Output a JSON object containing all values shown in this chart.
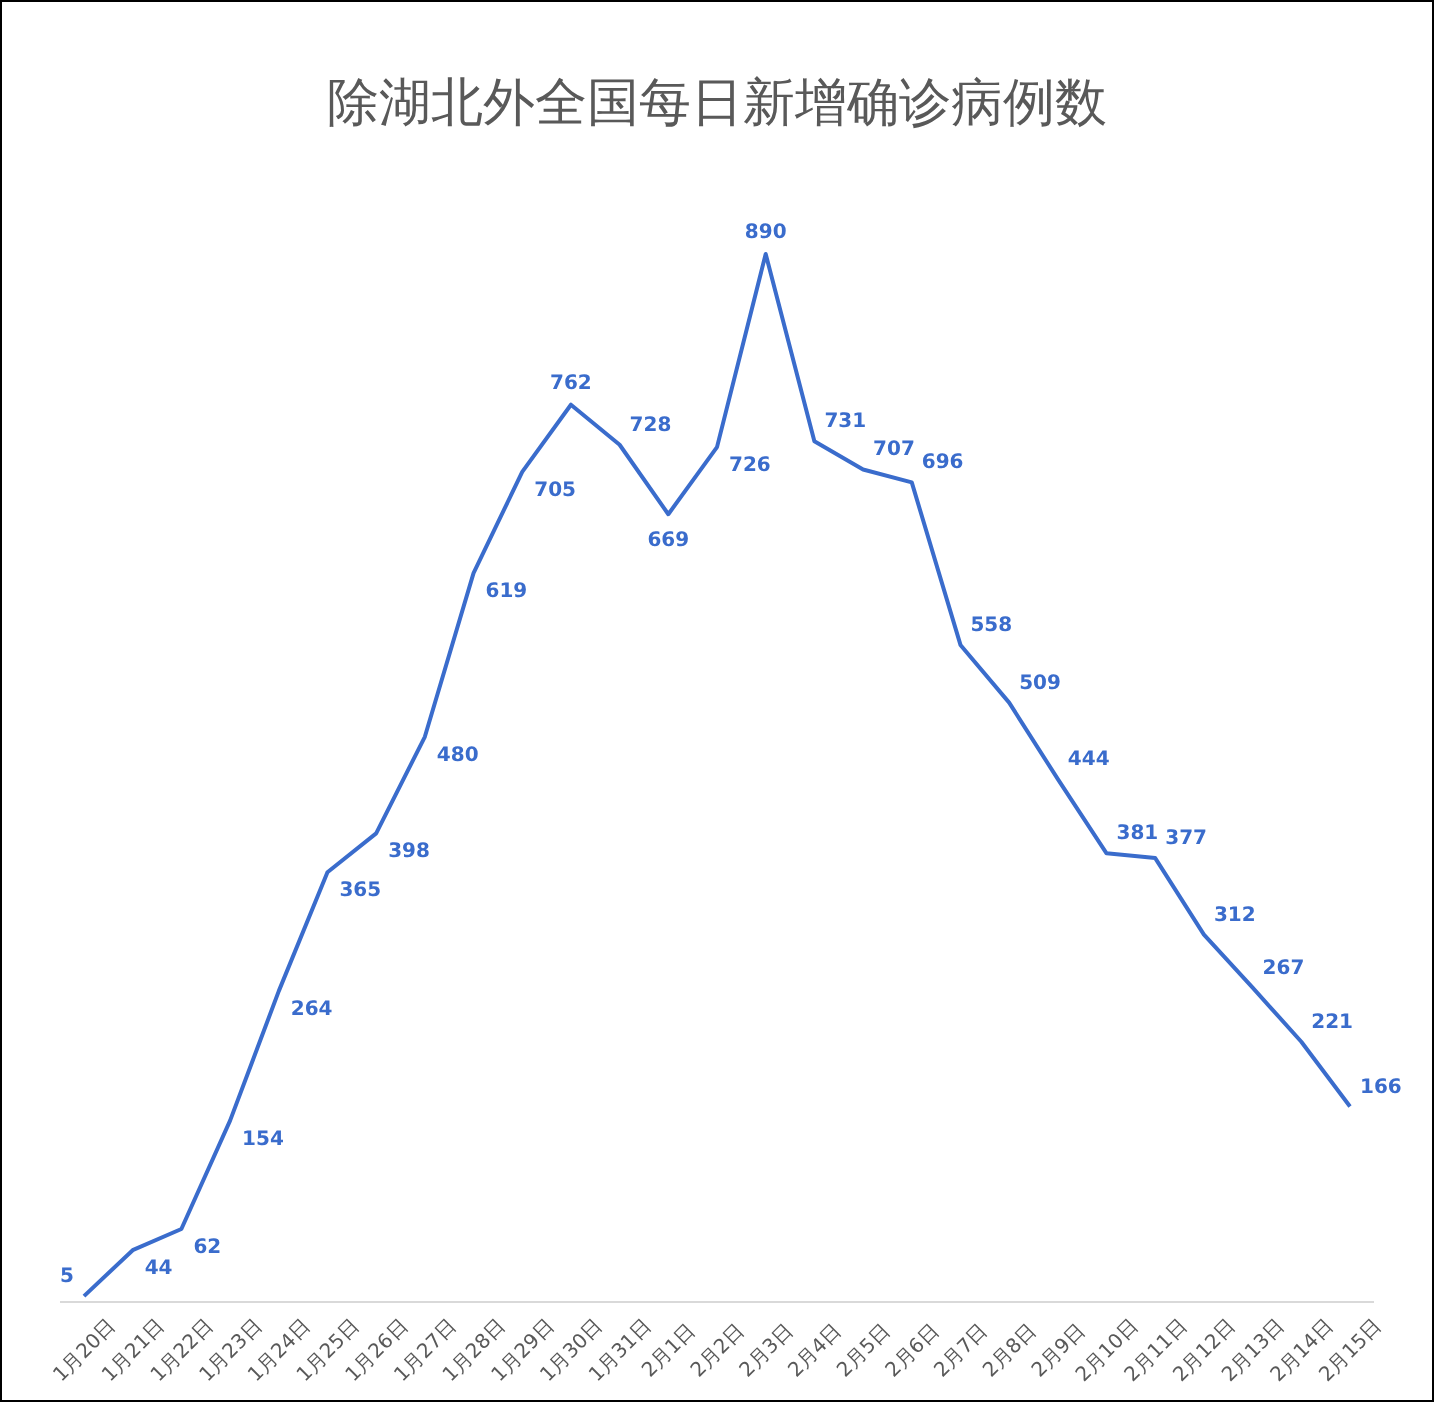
{
  "chart_data": {
    "type": "line",
    "title": "除湖北外全国每日新增确诊病例数",
    "categories": [
      "1月20日",
      "1月21日",
      "1月22日",
      "1月23日",
      "1月24日",
      "1月25日",
      "1月26日",
      "1月27日",
      "1月28日",
      "1月29日",
      "1月30日",
      "1月31日",
      "2月1日",
      "2月2日",
      "2月3日",
      "2月4日",
      "2月5日",
      "2月6日",
      "2月7日",
      "2月8日",
      "2月9日",
      "2月10日",
      "2月11日",
      "2月12日",
      "2月13日",
      "2月14日",
      "2月15日"
    ],
    "series": [
      {
        "color": "#3a6ccc",
        "values": [
          5,
          44,
          62,
          154,
          264,
          365,
          398,
          480,
          619,
          705,
          762,
          728,
          669,
          726,
          890,
          731,
          707,
          696,
          558,
          509,
          444,
          381,
          377,
          312,
          267,
          221,
          166
        ]
      }
    ],
    "data_labels": true,
    "marker": "none",
    "line_style": "solid"
  }
}
